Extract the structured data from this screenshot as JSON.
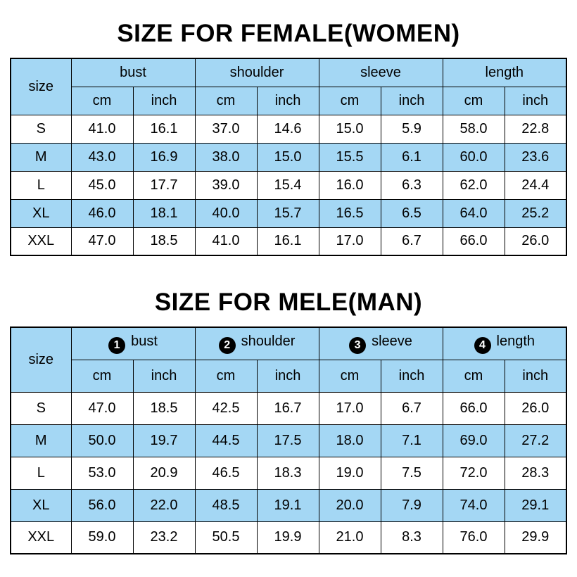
{
  "colors": {
    "header_fill": "#a4d7f4",
    "stripe_fill": "#a4d7f4",
    "border": "#000000",
    "badge_fill": "#000000",
    "badge_text": "#ffffff"
  },
  "chart_data": [
    {
      "type": "table",
      "title": "SIZE FOR FEMALE(WOMEN)",
      "corner_header": "size",
      "column_groups": [
        "bust",
        "shoulder",
        "sleeve",
        "length"
      ],
      "unit_row": [
        "cm",
        "inch",
        "cm",
        "inch",
        "cm",
        "inch",
        "cm",
        "inch"
      ],
      "rows": [
        {
          "size": "S",
          "values": [
            "41.0",
            "16.1",
            "37.0",
            "14.6",
            "15.0",
            "5.9",
            "58.0",
            "22.8"
          ]
        },
        {
          "size": "M",
          "values": [
            "43.0",
            "16.9",
            "38.0",
            "15.0",
            "15.5",
            "6.1",
            "60.0",
            "23.6"
          ]
        },
        {
          "size": "L",
          "values": [
            "45.0",
            "17.7",
            "39.0",
            "15.4",
            "16.0",
            "6.3",
            "62.0",
            "24.4"
          ]
        },
        {
          "size": "XL",
          "values": [
            "46.0",
            "18.1",
            "40.0",
            "15.7",
            "16.5",
            "6.5",
            "64.0",
            "25.2"
          ]
        },
        {
          "size": "XXL",
          "values": [
            "47.0",
            "18.5",
            "41.0",
            "16.1",
            "17.0",
            "6.7",
            "66.0",
            "26.0"
          ]
        }
      ]
    },
    {
      "type": "table",
      "title": "SIZE FOR MELE(MAN)",
      "corner_header": "size",
      "column_groups": [
        {
          "badge": "1",
          "label": "bust"
        },
        {
          "badge": "2",
          "label": "shoulder"
        },
        {
          "badge": "3",
          "label": "sleeve"
        },
        {
          "badge": "4",
          "label": "length"
        }
      ],
      "unit_row": [
        "cm",
        "inch",
        "cm",
        "inch",
        "cm",
        "inch",
        "cm",
        "inch"
      ],
      "rows": [
        {
          "size": "S",
          "values": [
            "47.0",
            "18.5",
            "42.5",
            "16.7",
            "17.0",
            "6.7",
            "66.0",
            "26.0"
          ]
        },
        {
          "size": "M",
          "values": [
            "50.0",
            "19.7",
            "44.5",
            "17.5",
            "18.0",
            "7.1",
            "69.0",
            "27.2"
          ]
        },
        {
          "size": "L",
          "values": [
            "53.0",
            "20.9",
            "46.5",
            "18.3",
            "19.0",
            "7.5",
            "72.0",
            "28.3"
          ]
        },
        {
          "size": "XL",
          "values": [
            "56.0",
            "22.0",
            "48.5",
            "19.1",
            "20.0",
            "7.9",
            "74.0",
            "29.1"
          ]
        },
        {
          "size": "XXL",
          "values": [
            "59.0",
            "23.2",
            "50.5",
            "19.9",
            "21.0",
            "8.3",
            "76.0",
            "29.9"
          ]
        }
      ]
    }
  ]
}
